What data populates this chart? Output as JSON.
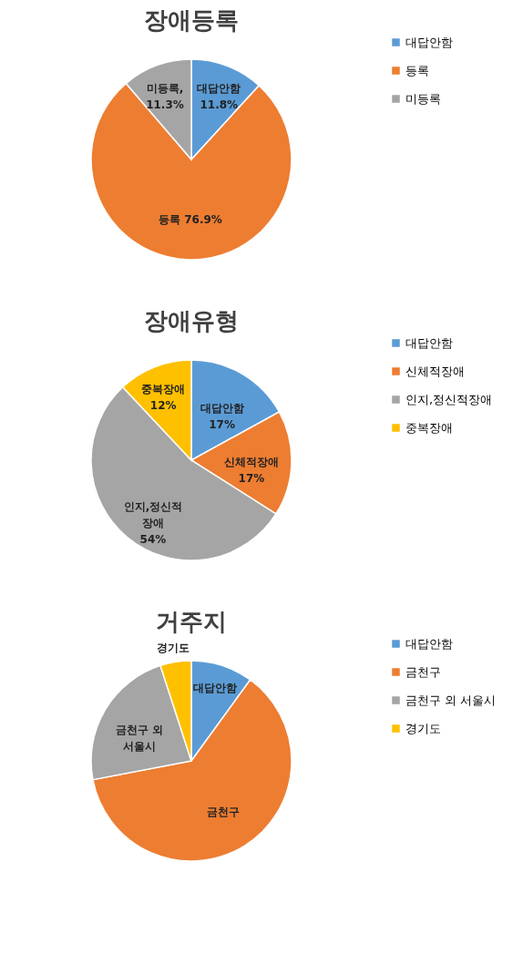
{
  "chart_data": [
    {
      "type": "pie",
      "title": "장애등록",
      "categories": [
        "대답안함",
        "등록",
        "미등록"
      ],
      "values": [
        11.8,
        76.9,
        11.3
      ],
      "colors": [
        "#5b9bd5",
        "#ed7d31",
        "#a5a5a5"
      ],
      "value_labels": [
        "대답안함\n11.8%",
        "등록 76.9%",
        "미등록,\n11.3%"
      ],
      "legend": "right"
    },
    {
      "type": "pie",
      "title": "장애유형",
      "categories": [
        "대답안함",
        "신체적장애",
        "인지,정신적장애",
        "중복장애"
      ],
      "values": [
        17,
        17,
        54,
        12
      ],
      "colors": [
        "#5b9bd5",
        "#ed7d31",
        "#a5a5a5",
        "#ffc000"
      ],
      "value_labels": [
        "대답안함\n17%",
        "신체적장애\n17%",
        "인지,정신적\n장애\n54%",
        "중복장애\n12%"
      ],
      "legend": "right"
    },
    {
      "type": "pie",
      "title": "거주지",
      "categories": [
        "대답안함",
        "금천구",
        "금천구 외 서울시",
        "경기도"
      ],
      "values": [
        10,
        62,
        23,
        5
      ],
      "colors": [
        "#5b9bd5",
        "#ed7d31",
        "#a5a5a5",
        "#ffc000"
      ],
      "value_labels": [
        "대답안함",
        "금천구",
        "금천구 외\n서울시",
        "경기도"
      ],
      "legend": "right"
    }
  ]
}
